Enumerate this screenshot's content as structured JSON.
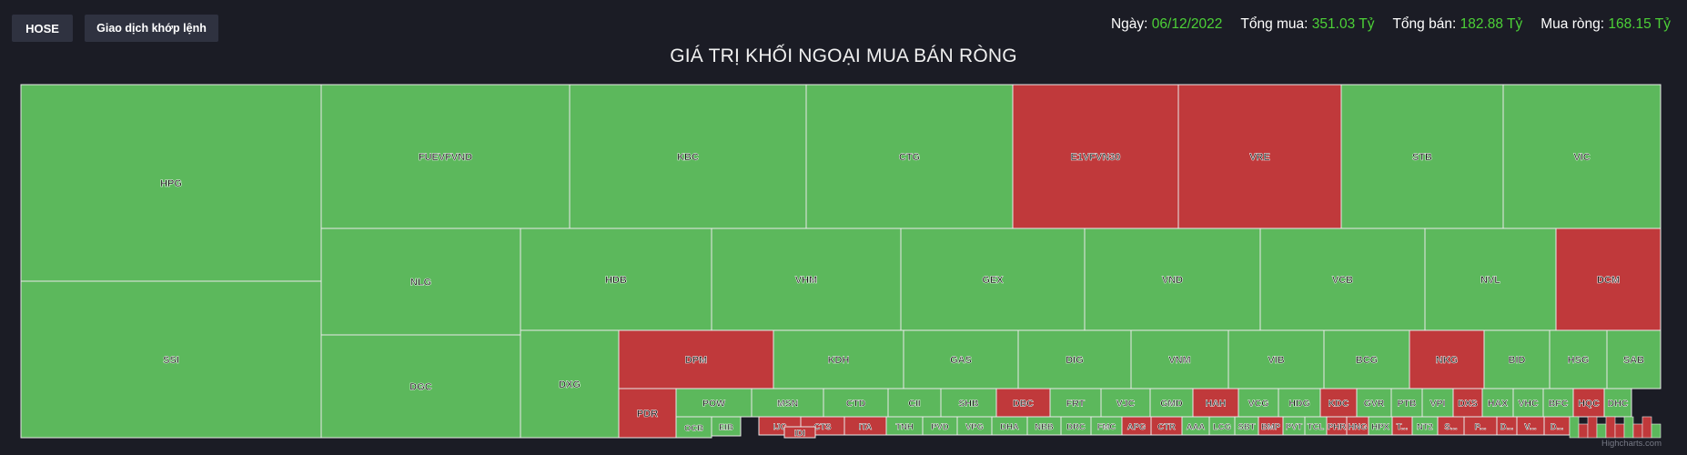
{
  "header": {
    "exchange_button": "HOSE",
    "mode_button": "Giao dịch khớp lệnh",
    "date_label": "Ngày:",
    "date_value": "06/12/2022",
    "buy_label": "Tổng mua:",
    "buy_value": "351.03 Tỷ",
    "sell_label": "Tổng bán:",
    "sell_value": "182.88 Tỷ",
    "net_label": "Mua ròng:",
    "net_value": "168.15 Tỷ"
  },
  "credits": "Highcharts.com",
  "colors": {
    "buy": "#5cb85c",
    "sell": "#c0393b",
    "background": "#1b1c25",
    "positive_text": "#4cd137"
  },
  "chart_data": {
    "type": "treemap",
    "title": "GIÁ TRỊ KHỐI NGOẠI MUA BÁN RÒNG",
    "stocks": [
      {
        "code": "HPG",
        "side": "buy"
      },
      {
        "code": "SSI",
        "side": "buy"
      },
      {
        "code": "FUEVFVND",
        "side": "buy"
      },
      {
        "code": "KBC",
        "side": "buy"
      },
      {
        "code": "CTG",
        "side": "buy"
      },
      {
        "code": "E1VFVN30",
        "side": "sell"
      },
      {
        "code": "VRE",
        "side": "sell"
      },
      {
        "code": "STB",
        "side": "buy"
      },
      {
        "code": "VIC",
        "side": "buy"
      },
      {
        "code": "NLG",
        "side": "buy"
      },
      {
        "code": "DGC",
        "side": "buy"
      },
      {
        "code": "HDB",
        "side": "buy"
      },
      {
        "code": "VHM",
        "side": "buy"
      },
      {
        "code": "GEX",
        "side": "buy"
      },
      {
        "code": "VND",
        "side": "buy"
      },
      {
        "code": "VCB",
        "side": "buy"
      },
      {
        "code": "NVL",
        "side": "buy"
      },
      {
        "code": "DCM",
        "side": "sell"
      },
      {
        "code": "DXG",
        "side": "buy"
      },
      {
        "code": "DPM",
        "side": "sell"
      },
      {
        "code": "KDH",
        "side": "buy"
      },
      {
        "code": "GAS",
        "side": "buy"
      },
      {
        "code": "DIG",
        "side": "buy"
      },
      {
        "code": "VNM",
        "side": "buy"
      },
      {
        "code": "VIB",
        "side": "buy"
      },
      {
        "code": "BCG",
        "side": "buy"
      },
      {
        "code": "NKG",
        "side": "sell"
      },
      {
        "code": "BID",
        "side": "buy"
      },
      {
        "code": "HSG",
        "side": "buy"
      },
      {
        "code": "SAB",
        "side": "buy"
      },
      {
        "code": "PDR",
        "side": "sell"
      },
      {
        "code": "POW",
        "side": "buy"
      },
      {
        "code": "MSN",
        "side": "buy"
      },
      {
        "code": "CTD",
        "side": "buy"
      },
      {
        "code": "CII",
        "side": "buy"
      },
      {
        "code": "SHB",
        "side": "buy"
      },
      {
        "code": "DBC",
        "side": "sell"
      },
      {
        "code": "FRT",
        "side": "buy"
      },
      {
        "code": "VJC",
        "side": "buy"
      },
      {
        "code": "GMD",
        "side": "buy"
      },
      {
        "code": "HAH",
        "side": "sell"
      },
      {
        "code": "VCG",
        "side": "buy"
      },
      {
        "code": "HDG",
        "side": "buy"
      },
      {
        "code": "KDC",
        "side": "sell"
      },
      {
        "code": "GVR",
        "side": "buy"
      },
      {
        "code": "PTB",
        "side": "buy"
      },
      {
        "code": "VPI",
        "side": "buy"
      },
      {
        "code": "DXS",
        "side": "sell"
      },
      {
        "code": "HAX",
        "side": "buy"
      },
      {
        "code": "VHC",
        "side": "buy"
      },
      {
        "code": "BFC",
        "side": "buy"
      },
      {
        "code": "HQC",
        "side": "sell"
      },
      {
        "code": "DHC",
        "side": "buy"
      },
      {
        "code": "OCB",
        "side": "buy"
      },
      {
        "code": "EIB",
        "side": "buy"
      },
      {
        "code": "IJC",
        "side": "sell"
      },
      {
        "code": "CTS",
        "side": "sell"
      },
      {
        "code": "ITA",
        "side": "sell"
      },
      {
        "code": "TNH",
        "side": "buy"
      },
      {
        "code": "PVD",
        "side": "buy"
      },
      {
        "code": "VPG",
        "side": "buy"
      },
      {
        "code": "DHA",
        "side": "buy"
      },
      {
        "code": "NBB",
        "side": "buy"
      },
      {
        "code": "DRC",
        "side": "buy"
      },
      {
        "code": "FMC",
        "side": "buy"
      },
      {
        "code": "APG",
        "side": "sell"
      },
      {
        "code": "CTR",
        "side": "sell"
      },
      {
        "code": "AAA",
        "side": "buy"
      },
      {
        "code": "LCG",
        "side": "buy"
      },
      {
        "code": "SBT",
        "side": "buy"
      },
      {
        "code": "BMP",
        "side": "sell"
      },
      {
        "code": "PVT",
        "side": "buy"
      },
      {
        "code": "TCL",
        "side": "buy"
      },
      {
        "code": "PHR",
        "side": "sell"
      },
      {
        "code": "HNG",
        "side": "sell"
      },
      {
        "code": "HPX",
        "side": "buy"
      },
      {
        "code": "T...",
        "side": "sell"
      },
      {
        "code": "NT2",
        "side": "buy"
      },
      {
        "code": "S...",
        "side": "sell"
      },
      {
        "code": "P...",
        "side": "sell"
      },
      {
        "code": "D...",
        "side": "sell"
      },
      {
        "code": "V...",
        "side": "sell"
      },
      {
        "code": "D...",
        "side": "sell"
      },
      {
        "code": "IDI",
        "side": "sell"
      }
    ]
  }
}
